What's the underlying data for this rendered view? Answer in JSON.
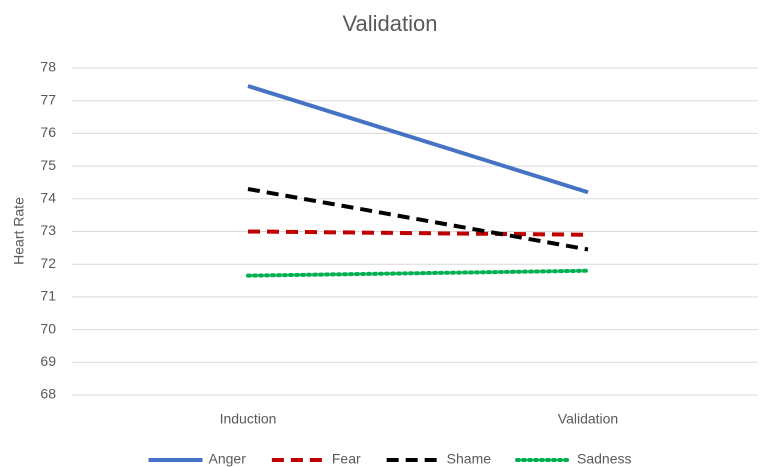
{
  "chart_data": {
    "type": "line",
    "title": "Validation",
    "y_label": "Heart Rate",
    "categories": [
      "Induction",
      "Validation"
    ],
    "series": [
      {
        "name": "Anger",
        "color": "#4472c4",
        "style": "solid",
        "values": [
          77.45,
          74.2
        ]
      },
      {
        "name": "Fear",
        "color": "#c00000",
        "style": "dash",
        "values": [
          73.0,
          72.9
        ]
      },
      {
        "name": "Shame",
        "color": "#000000",
        "style": "dash",
        "values": [
          74.3,
          72.45
        ]
      },
      {
        "name": "Sadness",
        "color": "#00b050",
        "style": "dot",
        "values": [
          71.65,
          71.8
        ]
      }
    ],
    "ylim": [
      68,
      78
    ],
    "yticks": [
      68,
      69,
      70,
      71,
      72,
      73,
      74,
      75,
      76,
      77,
      78
    ],
    "grid": true,
    "legend": "bottom"
  }
}
